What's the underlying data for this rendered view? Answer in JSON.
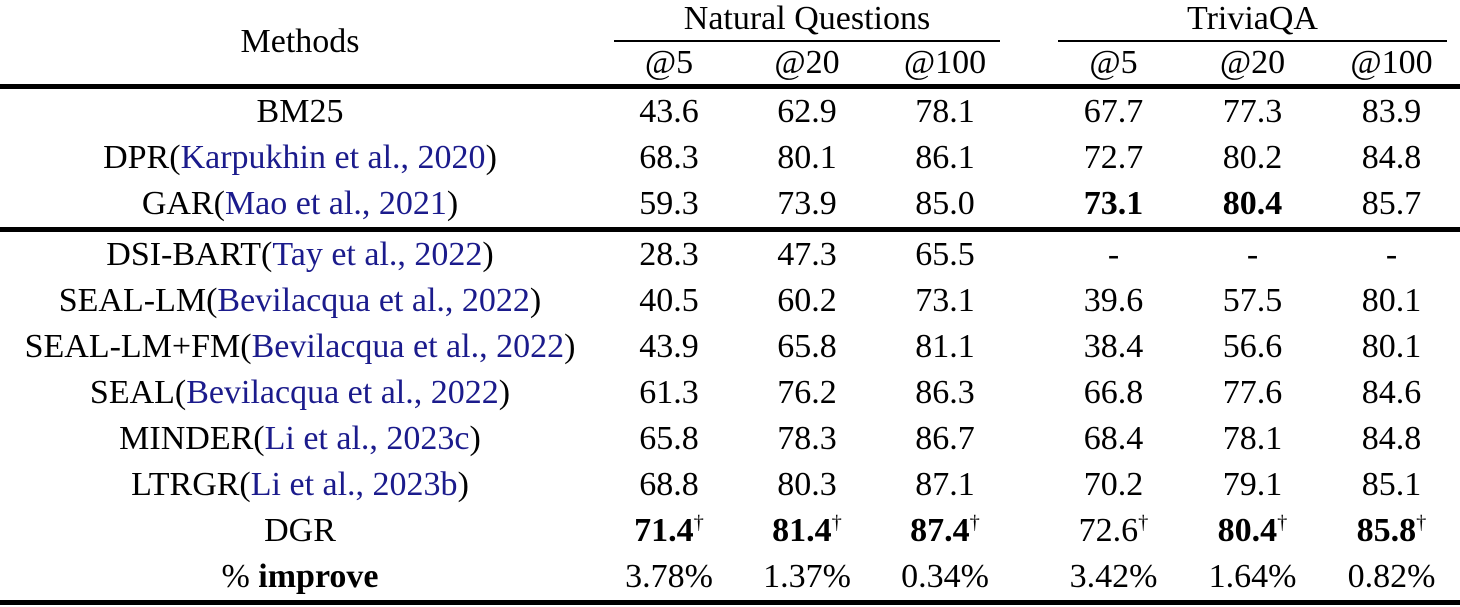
{
  "colors": {
    "citation_link": "#1b1b8c",
    "text": "#000000",
    "rule": "#000000",
    "background": "#ffffff"
  },
  "dagger_symbol": "†",
  "table": {
    "header": {
      "methods_label": "Methods",
      "groups": [
        {
          "label": "Natural Questions",
          "cols": [
            "@5",
            "@20",
            "@100"
          ]
        },
        {
          "label": "TriviaQA",
          "cols": [
            "@5",
            "@20",
            "@100"
          ]
        }
      ]
    },
    "sections": [
      {
        "rows": [
          {
            "method": [
              {
                "text": "BM25",
                "style": "plain"
              }
            ],
            "values": [
              {
                "text": "43.6"
              },
              {
                "text": "62.9"
              },
              {
                "text": "78.1"
              },
              {
                "text": "67.7"
              },
              {
                "text": "77.3"
              },
              {
                "text": "83.9"
              }
            ]
          },
          {
            "method": [
              {
                "text": "DPR(",
                "style": "plain"
              },
              {
                "text": "Karpukhin et al., 2020",
                "style": "citation"
              },
              {
                "text": ")",
                "style": "plain"
              }
            ],
            "values": [
              {
                "text": "68.3"
              },
              {
                "text": "80.1"
              },
              {
                "text": "86.1"
              },
              {
                "text": "72.7"
              },
              {
                "text": "80.2"
              },
              {
                "text": "84.8"
              }
            ]
          },
          {
            "method": [
              {
                "text": "GAR(",
                "style": "plain"
              },
              {
                "text": "Mao et al., 2021",
                "style": "citation"
              },
              {
                "text": ")",
                "style": "plain"
              }
            ],
            "values": [
              {
                "text": "59.3"
              },
              {
                "text": "73.9"
              },
              {
                "text": "85.0"
              },
              {
                "text": "73.1",
                "bold": true
              },
              {
                "text": "80.4",
                "bold": true
              },
              {
                "text": "85.7"
              }
            ]
          }
        ]
      },
      {
        "rows": [
          {
            "method": [
              {
                "text": "DSI-BART(",
                "style": "plain"
              },
              {
                "text": "Tay et al., 2022",
                "style": "citation"
              },
              {
                "text": ")",
                "style": "plain"
              }
            ],
            "values": [
              {
                "text": "28.3"
              },
              {
                "text": "47.3"
              },
              {
                "text": "65.5"
              },
              {
                "text": "-"
              },
              {
                "text": "-"
              },
              {
                "text": "-"
              }
            ]
          },
          {
            "method": [
              {
                "text": "SEAL-LM(",
                "style": "plain"
              },
              {
                "text": "Bevilacqua et al., 2022",
                "style": "citation"
              },
              {
                "text": ")",
                "style": "plain"
              }
            ],
            "values": [
              {
                "text": "40.5"
              },
              {
                "text": "60.2"
              },
              {
                "text": "73.1"
              },
              {
                "text": "39.6"
              },
              {
                "text": "57.5"
              },
              {
                "text": "80.1"
              }
            ]
          },
          {
            "method": [
              {
                "text": "SEAL-LM+FM(",
                "style": "plain"
              },
              {
                "text": "Bevilacqua et al., 2022",
                "style": "citation"
              },
              {
                "text": ")",
                "style": "plain"
              }
            ],
            "values": [
              {
                "text": "43.9"
              },
              {
                "text": "65.8"
              },
              {
                "text": "81.1"
              },
              {
                "text": "38.4"
              },
              {
                "text": "56.6"
              },
              {
                "text": "80.1"
              }
            ]
          },
          {
            "method": [
              {
                "text": "SEAL(",
                "style": "plain"
              },
              {
                "text": "Bevilacqua et al., 2022",
                "style": "citation"
              },
              {
                "text": ")",
                "style": "plain"
              }
            ],
            "values": [
              {
                "text": "61.3"
              },
              {
                "text": "76.2"
              },
              {
                "text": "86.3"
              },
              {
                "text": "66.8"
              },
              {
                "text": "77.6"
              },
              {
                "text": "84.6"
              }
            ]
          },
          {
            "method": [
              {
                "text": "MINDER(",
                "style": "plain"
              },
              {
                "text": "Li et al., 2023c",
                "style": "citation"
              },
              {
                "text": ")",
                "style": "plain"
              }
            ],
            "values": [
              {
                "text": "65.8"
              },
              {
                "text": "78.3"
              },
              {
                "text": "86.7"
              },
              {
                "text": "68.4"
              },
              {
                "text": "78.1"
              },
              {
                "text": "84.8"
              }
            ]
          },
          {
            "method": [
              {
                "text": "LTRGR(",
                "style": "plain"
              },
              {
                "text": "Li et al., 2023b",
                "style": "citation"
              },
              {
                "text": ")",
                "style": "plain"
              }
            ],
            "values": [
              {
                "text": "68.8"
              },
              {
                "text": "80.3"
              },
              {
                "text": "87.1"
              },
              {
                "text": "70.2"
              },
              {
                "text": "79.1"
              },
              {
                "text": "85.1"
              }
            ]
          },
          {
            "method": [
              {
                "text": "DGR",
                "style": "plain"
              }
            ],
            "values": [
              {
                "text": "71.4",
                "bold": true,
                "dagger": true
              },
              {
                "text": "81.4",
                "bold": true,
                "dagger": true
              },
              {
                "text": "87.4",
                "bold": true,
                "dagger": true
              },
              {
                "text": "72.6",
                "dagger": true
              },
              {
                "text": "80.4",
                "bold": true,
                "dagger": true
              },
              {
                "text": "85.8",
                "bold": true,
                "dagger": true
              }
            ]
          },
          {
            "method": [
              {
                "text": "% ",
                "style": "plain"
              },
              {
                "text": "improve",
                "style": "bold"
              }
            ],
            "values": [
              {
                "text": "3.78%"
              },
              {
                "text": "1.37%"
              },
              {
                "text": "0.34%"
              },
              {
                "text": "3.42%"
              },
              {
                "text": "1.64%"
              },
              {
                "text": "0.82%"
              }
            ]
          }
        ]
      }
    ]
  }
}
